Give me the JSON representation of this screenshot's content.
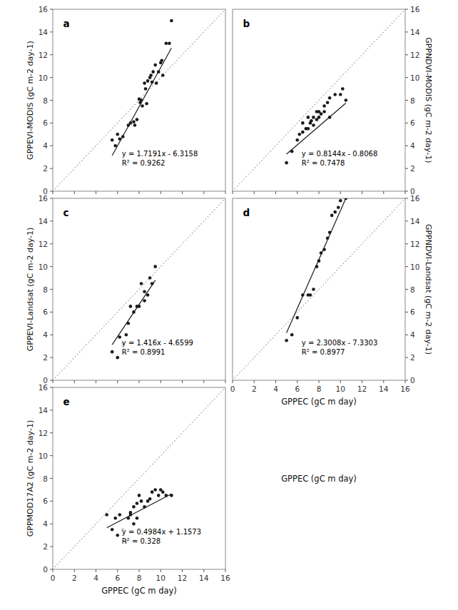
{
  "chart_data": [
    {
      "type": "scatter",
      "title": "a",
      "y_label": "GPPEVI-MODIS (gC m-2 day-1)",
      "annotations": [
        "y = 1.7191x - 6.3158",
        "R² = 0.9262"
      ],
      "x": [
        5.5,
        5.8,
        6.0,
        6.2,
        6.5,
        7.0,
        7.2,
        7.5,
        7.6,
        7.8,
        8.0,
        8.1,
        8.2,
        8.3,
        8.5,
        8.6,
        8.7,
        8.8,
        9.0,
        9.1,
        9.2,
        9.3,
        9.5,
        9.6,
        9.8,
        10.0,
        10.1,
        10.2,
        10.5,
        10.8,
        11.0
      ],
      "values": [
        4.5,
        4.0,
        5.0,
        4.6,
        4.8,
        5.8,
        6.0,
        6.1,
        5.8,
        6.3,
        8.1,
        7.8,
        8.0,
        7.5,
        9.5,
        9.0,
        7.7,
        9.7,
        10.0,
        10.2,
        9.6,
        10.5,
        11.1,
        9.5,
        10.5,
        11.3,
        11.5,
        10.2,
        13.0,
        13.0,
        15.0
      ],
      "fit_x": [
        5.5,
        11.0
      ],
      "fit_values": [
        3.13925,
        12.5943
      ],
      "color": "#1a1a1a",
      "xlim": [
        0,
        16
      ],
      "ylim": [
        0,
        16
      ],
      "xticks": [
        0,
        2,
        4,
        6,
        8,
        10,
        12,
        14,
        16
      ],
      "yticks": [
        0,
        2,
        4,
        6,
        8,
        10,
        12,
        14,
        16
      ],
      "tick_labels": "y"
    },
    {
      "type": "scatter",
      "title": "b",
      "y_label": "GPPNDVI-MODIS (gC m-2 day-1)",
      "annotations": [
        "y = 0.8144x - 0.8068",
        "R² = 0.7478"
      ],
      "x": [
        5.0,
        5.5,
        6.0,
        6.2,
        6.5,
        6.5,
        6.8,
        7.0,
        7.0,
        7.2,
        7.3,
        7.5,
        7.5,
        7.8,
        7.8,
        8.0,
        8.0,
        8.2,
        8.5,
        8.5,
        8.8,
        9.0,
        9.0,
        9.5,
        10.0,
        10.2,
        10.5
      ],
      "values": [
        2.5,
        3.5,
        4.5,
        5.0,
        5.2,
        6.0,
        5.5,
        5.5,
        6.5,
        6.0,
        6.2,
        5.8,
        6.5,
        7.0,
        6.3,
        6.5,
        7.0,
        6.8,
        7.0,
        7.5,
        7.8,
        8.2,
        6.5,
        8.5,
        8.5,
        9.0,
        8.0
      ],
      "fit_x": [
        5.0,
        10.5
      ],
      "fit_values": [
        3.2652,
        7.7444
      ],
      "color": "#1a1a1a",
      "xlim": [
        0,
        16
      ],
      "ylim": [
        0,
        16
      ],
      "xticks": [
        0,
        2,
        4,
        6,
        8,
        10,
        12,
        14,
        16
      ],
      "yticks": [
        0,
        2,
        4,
        6,
        8,
        10,
        12,
        14,
        16
      ],
      "tick_labels": "y"
    },
    {
      "type": "scatter",
      "title": "c",
      "y_label": "GPPEVI-Landsat (gC m-2 day-1)",
      "annotations": [
        "y = 1.416x - 4.6599",
        "R² = 0.8991"
      ],
      "x": [
        5.5,
        6.0,
        6.2,
        6.5,
        6.8,
        7.0,
        7.2,
        7.5,
        7.8,
        8.0,
        8.2,
        8.5,
        8.5,
        8.8,
        9.0,
        9.2,
        9.5
      ],
      "values": [
        2.5,
        2.0,
        3.8,
        3.2,
        4.0,
        5.0,
        6.5,
        6.0,
        6.5,
        6.5,
        8.5,
        7.0,
        7.8,
        7.5,
        9.0,
        8.5,
        10.0
      ],
      "fit_x": [
        5.5,
        9.5
      ],
      "fit_values": [
        3.1281,
        8.7921
      ],
      "color": "#1a1a1a",
      "xlim": [
        0,
        16
      ],
      "ylim": [
        0,
        16
      ],
      "xticks": [
        0,
        2,
        4,
        6,
        8,
        10,
        12,
        14,
        16
      ],
      "yticks": [
        0,
        2,
        4,
        6,
        8,
        10,
        12,
        14,
        16
      ],
      "tick_labels": "y"
    },
    {
      "type": "scatter",
      "title": "d",
      "x_label": "GPPEC (gC m day)",
      "y_label": "GPPNDVI-Landsat (gC m-2 day-1)",
      "annotations": [
        "y = 2.3008x - 7.3303",
        "R² = 0.8977"
      ],
      "x": [
        5.0,
        5.5,
        6.0,
        6.5,
        7.0,
        7.2,
        7.5,
        7.8,
        8.0,
        8.2,
        8.5,
        8.8,
        9.0,
        9.2,
        9.5,
        9.8,
        10.0,
        10.5
      ],
      "values": [
        3.5,
        4.0,
        5.5,
        7.5,
        7.5,
        7.5,
        8.0,
        10.0,
        10.5,
        11.2,
        11.5,
        12.5,
        13.0,
        14.5,
        14.8,
        15.2,
        15.8,
        16.0
      ],
      "fit_x": [
        5.0,
        10.5
      ],
      "fit_values": [
        4.1737,
        16
      ],
      "color": "#1a1a1a",
      "xlim": [
        0,
        16
      ],
      "ylim": [
        0,
        16
      ],
      "xticks": [
        0,
        2,
        4,
        6,
        8,
        10,
        12,
        14,
        16
      ],
      "yticks": [
        0,
        2,
        4,
        6,
        8,
        10,
        12,
        14,
        16
      ]
    },
    {
      "type": "scatter",
      "title": "e",
      "x_label": "GPPEC (gC m day)",
      "y_label": "GPPMOD17A2 (gC m-2 day-1)",
      "annotations": [
        "y = 0.4984x + 1.1573",
        "R² = 0.328"
      ],
      "x": [
        5.0,
        5.5,
        5.8,
        6.0,
        6.2,
        6.5,
        6.8,
        7.0,
        7.2,
        7.2,
        7.5,
        7.5,
        7.8,
        7.8,
        8.0,
        8.2,
        8.5,
        8.8,
        9.0,
        9.2,
        9.5,
        9.8,
        10.0,
        10.2,
        10.5,
        11.0
      ],
      "values": [
        4.8,
        3.5,
        4.5,
        3.0,
        4.8,
        3.5,
        2.5,
        4.5,
        5.0,
        4.8,
        5.5,
        4.0,
        5.8,
        4.5,
        6.5,
        6.0,
        5.5,
        6.0,
        6.2,
        6.8,
        7.0,
        6.5,
        7.0,
        6.8,
        6.5,
        6.5
      ],
      "fit_x": [
        5.0,
        11.0
      ],
      "fit_values": [
        3.6493,
        6.6397
      ],
      "color": "#1a1a1a",
      "xlim": [
        0,
        16
      ],
      "ylim": [
        0,
        16
      ],
      "xticks": [
        0,
        2,
        4,
        6,
        8,
        10,
        12,
        14,
        16
      ],
      "yticks": [
        0,
        2,
        4,
        6,
        8,
        10,
        12,
        14,
        16
      ]
    }
  ],
  "annotations": [
    "GPPEC (gC m day)"
  ]
}
